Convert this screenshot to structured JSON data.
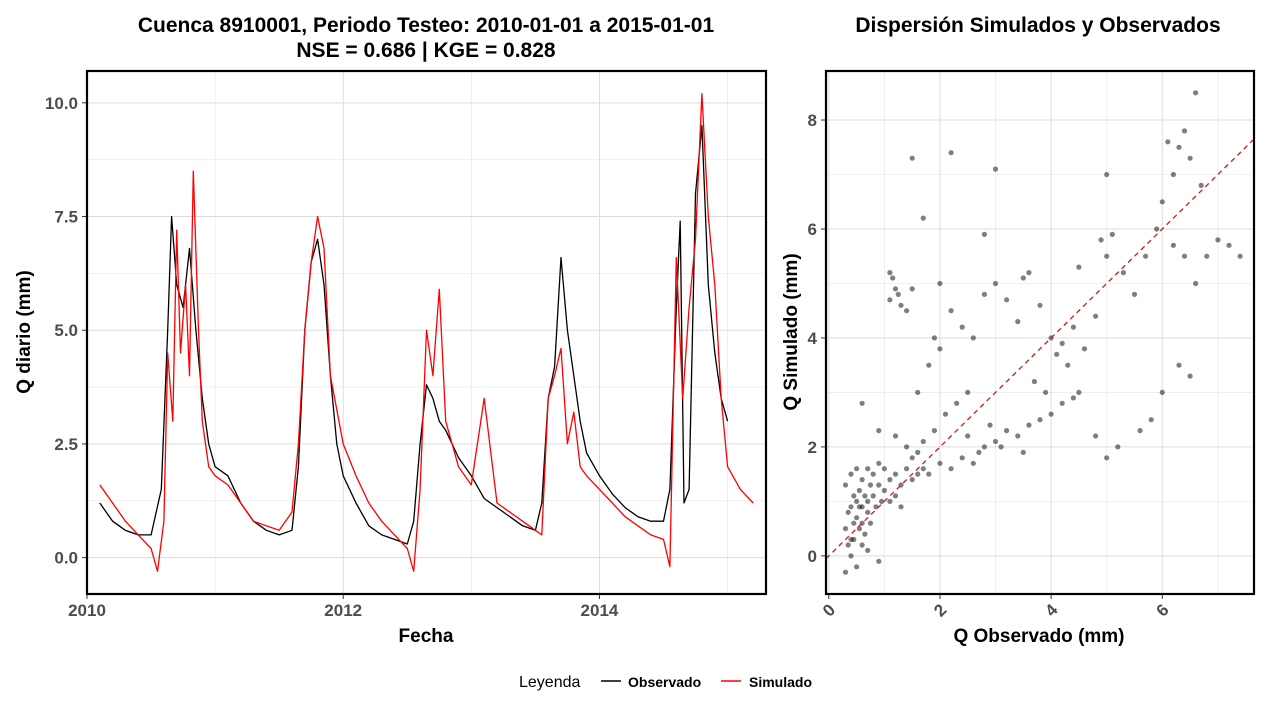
{
  "colors": {
    "observed": "#000000",
    "simulated": "#ff0000",
    "refline": "#cc1a1a",
    "grid": "#ebebeb"
  },
  "legend": {
    "title": "Leyenda",
    "items": [
      "Observado",
      "Simulado"
    ],
    "placement": "bottom"
  },
  "chart_data": [
    {
      "type": "line",
      "title": "Cuenca 8910001, Periodo Testeo: 2010-01-01 a 2015-01-01",
      "subtitle": "NSE = 0.686 | KGE = 0.828",
      "xlabel": "Fecha",
      "ylabel": "Q diario (mm)",
      "xlim": [
        2010.0,
        2015.3
      ],
      "ylim": [
        -0.8,
        10.7
      ],
      "xticks": [
        2010,
        2012,
        2014
      ],
      "xtick_labels": [
        "2010",
        "2012",
        "2014"
      ],
      "yticks": [
        0.0,
        2.5,
        5.0,
        7.5,
        10.0
      ],
      "ytick_labels": [
        "0.0",
        "2.5",
        "5.0",
        "7.5",
        "10.0"
      ],
      "grid": true,
      "series": [
        {
          "name": "Observado",
          "color": "#000000",
          "x": [
            2010.1,
            2010.15,
            2010.2,
            2010.3,
            2010.4,
            2010.5,
            2010.58,
            2010.63,
            2010.66,
            2010.7,
            2010.75,
            2010.8,
            2010.85,
            2010.9,
            2010.95,
            2011.0,
            2011.1,
            2011.2,
            2011.3,
            2011.4,
            2011.5,
            2011.6,
            2011.65,
            2011.7,
            2011.75,
            2011.8,
            2011.85,
            2011.9,
            2011.95,
            2012.0,
            2012.1,
            2012.2,
            2012.3,
            2012.4,
            2012.5,
            2012.55,
            2012.6,
            2012.65,
            2012.7,
            2012.75,
            2012.8,
            2012.9,
            2013.0,
            2013.1,
            2013.2,
            2013.3,
            2013.4,
            2013.5,
            2013.55,
            2013.6,
            2013.65,
            2013.7,
            2013.75,
            2013.8,
            2013.85,
            2013.9,
            2014.0,
            2014.1,
            2014.2,
            2014.3,
            2014.4,
            2014.5,
            2014.55,
            2014.6,
            2014.63,
            2014.66,
            2014.7,
            2014.75,
            2014.8,
            2014.85,
            2014.9,
            2014.95,
            2015.0
          ],
          "y": [
            1.2,
            1.0,
            0.8,
            0.6,
            0.5,
            0.5,
            1.5,
            5.0,
            7.5,
            6.0,
            5.5,
            6.8,
            5.0,
            3.5,
            2.5,
            2.0,
            1.8,
            1.2,
            0.8,
            0.6,
            0.5,
            0.6,
            2.0,
            5.0,
            6.5,
            7.0,
            6.0,
            4.0,
            2.5,
            1.8,
            1.2,
            0.7,
            0.5,
            0.4,
            0.3,
            0.8,
            2.5,
            3.8,
            3.5,
            3.0,
            2.8,
            2.2,
            1.8,
            1.3,
            1.1,
            0.9,
            0.7,
            0.6,
            1.2,
            3.5,
            4.2,
            6.6,
            5.0,
            4.0,
            3.0,
            2.3,
            1.8,
            1.4,
            1.1,
            0.9,
            0.8,
            0.8,
            1.5,
            5.5,
            7.4,
            1.2,
            1.5,
            8.0,
            9.5,
            6.0,
            4.5,
            3.5,
            3.0
          ]
        },
        {
          "name": "Simulado",
          "color": "#ff0000",
          "x": [
            2010.1,
            2010.2,
            2010.3,
            2010.4,
            2010.5,
            2010.55,
            2010.6,
            2010.63,
            2010.67,
            2010.7,
            2010.73,
            2010.77,
            2010.8,
            2010.83,
            2010.87,
            2010.9,
            2010.95,
            2011.0,
            2011.1,
            2011.2,
            2011.3,
            2011.4,
            2011.5,
            2011.6,
            2011.65,
            2011.7,
            2011.75,
            2011.8,
            2011.85,
            2011.9,
            2012.0,
            2012.1,
            2012.2,
            2012.3,
            2012.4,
            2012.5,
            2012.55,
            2012.6,
            2012.65,
            2012.7,
            2012.75,
            2012.8,
            2012.85,
            2012.9,
            2013.0,
            2013.1,
            2013.2,
            2013.3,
            2013.4,
            2013.5,
            2013.55,
            2013.6,
            2013.65,
            2013.7,
            2013.75,
            2013.8,
            2013.85,
            2013.9,
            2014.0,
            2014.1,
            2014.2,
            2014.3,
            2014.4,
            2014.5,
            2014.55,
            2014.6,
            2014.65,
            2014.7,
            2014.75,
            2014.8,
            2014.85,
            2014.9,
            2014.95,
            2015.0,
            2015.1,
            2015.2
          ],
          "y": [
            1.6,
            1.2,
            0.8,
            0.5,
            0.2,
            -0.3,
            0.8,
            4.5,
            3.0,
            7.2,
            4.5,
            6.0,
            4.0,
            8.5,
            5.0,
            3.0,
            2.0,
            1.8,
            1.6,
            1.2,
            0.8,
            0.7,
            0.6,
            1.0,
            2.5,
            5.0,
            6.5,
            7.5,
            6.8,
            4.0,
            2.5,
            1.8,
            1.2,
            0.8,
            0.5,
            0.2,
            -0.3,
            1.5,
            5.0,
            4.0,
            5.9,
            3.0,
            2.5,
            2.0,
            1.6,
            3.5,
            1.2,
            1.0,
            0.8,
            0.6,
            0.5,
            3.5,
            4.0,
            4.6,
            2.5,
            3.2,
            2.0,
            1.8,
            1.5,
            1.2,
            0.9,
            0.7,
            0.5,
            0.4,
            -0.2,
            6.6,
            3.5,
            5.5,
            7.0,
            10.2,
            7.5,
            6.0,
            3.5,
            2.0,
            1.5,
            1.2
          ]
        }
      ]
    },
    {
      "type": "scatter",
      "title": "Dispersión Simulados y Observados",
      "xlabel": "Q Observado (mm)",
      "ylabel": "Q Simulado (mm)",
      "xlim": [
        -0.05,
        7.65
      ],
      "ylim": [
        -0.7,
        8.9
      ],
      "xticks": [
        0,
        2,
        4,
        6
      ],
      "xtick_labels": [
        "0",
        "2",
        "4",
        "6"
      ],
      "yticks": [
        0,
        2,
        4,
        6,
        8
      ],
      "ytick_labels": [
        "0",
        "2",
        "4",
        "6",
        "8"
      ],
      "grid": true,
      "reference_line": {
        "type": "y = x",
        "style": "dashed",
        "color": "#cc1a1a"
      },
      "point_color": "#000000",
      "point_alpha": 0.5,
      "points": [
        [
          0.3,
          0.5
        ],
        [
          0.35,
          0.8
        ],
        [
          0.4,
          0.3
        ],
        [
          0.45,
          1.1
        ],
        [
          0.5,
          0.7
        ],
        [
          0.55,
          1.2
        ],
        [
          0.6,
          0.9
        ],
        [
          0.65,
          0.4
        ],
        [
          0.7,
          1.0
        ],
        [
          0.3,
          1.3
        ],
        [
          0.4,
          0.0
        ],
        [
          0.5,
          -0.2
        ],
        [
          0.35,
          0.2
        ],
        [
          0.6,
          0.6
        ],
        [
          0.7,
          0.8
        ],
        [
          0.8,
          1.1
        ],
        [
          0.9,
          1.3
        ],
        [
          1.0,
          1.2
        ],
        [
          1.1,
          1.4
        ],
        [
          0.45,
          0.6
        ],
        [
          0.55,
          0.9
        ],
        [
          0.75,
          1.3
        ],
        [
          0.85,
          0.9
        ],
        [
          0.95,
          1.0
        ],
        [
          1.2,
          1.5
        ],
        [
          1.3,
          1.3
        ],
        [
          1.4,
          1.6
        ],
        [
          1.5,
          1.4
        ],
        [
          1.6,
          1.5
        ],
        [
          1.2,
          1.1
        ],
        [
          0.3,
          -0.3
        ],
        [
          0.4,
          1.5
        ],
        [
          0.5,
          1.6
        ],
        [
          0.6,
          0.2
        ],
        [
          0.7,
          0.1
        ],
        [
          0.9,
          -0.1
        ],
        [
          1.0,
          1.6
        ],
        [
          1.1,
          1.0
        ],
        [
          1.3,
          0.9
        ],
        [
          1.5,
          1.8
        ],
        [
          1.7,
          1.6
        ],
        [
          1.8,
          1.5
        ],
        [
          2.0,
          1.7
        ],
        [
          2.2,
          1.6
        ],
        [
          2.4,
          1.8
        ],
        [
          2.6,
          1.7
        ],
        [
          2.8,
          2.0
        ],
        [
          3.0,
          2.1
        ],
        [
          3.2,
          2.3
        ],
        [
          3.4,
          2.2
        ],
        [
          3.6,
          2.4
        ],
        [
          3.8,
          2.5
        ],
        [
          4.0,
          2.6
        ],
        [
          4.2,
          2.8
        ],
        [
          4.4,
          2.9
        ],
        [
          2.5,
          2.2
        ],
        [
          2.7,
          1.9
        ],
        [
          2.9,
          2.4
        ],
        [
          3.1,
          2.0
        ],
        [
          3.5,
          1.9
        ],
        [
          1.1,
          4.7
        ],
        [
          1.2,
          4.9
        ],
        [
          1.15,
          5.1
        ],
        [
          1.3,
          4.6
        ],
        [
          1.25,
          4.8
        ],
        [
          1.1,
          5.2
        ],
        [
          1.4,
          4.5
        ],
        [
          1.5,
          4.9
        ],
        [
          1.6,
          3.0
        ],
        [
          1.8,
          3.5
        ],
        [
          2.0,
          3.8
        ],
        [
          2.2,
          4.5
        ],
        [
          2.4,
          4.2
        ],
        [
          2.6,
          4.0
        ],
        [
          2.8,
          4.8
        ],
        [
          3.0,
          5.0
        ],
        [
          3.2,
          4.7
        ],
        [
          3.4,
          4.3
        ],
        [
          3.6,
          5.2
        ],
        [
          3.8,
          4.6
        ],
        [
          4.0,
          4.0
        ],
        [
          4.2,
          3.9
        ],
        [
          4.4,
          4.2
        ],
        [
          4.6,
          3.8
        ],
        [
          4.8,
          4.4
        ],
        [
          5.0,
          5.5
        ],
        [
          5.1,
          5.9
        ],
        [
          4.9,
          5.8
        ],
        [
          5.3,
          5.2
        ],
        [
          5.5,
          4.8
        ],
        [
          5.7,
          5.5
        ],
        [
          5.9,
          6.0
        ],
        [
          6.0,
          6.5
        ],
        [
          6.2,
          7.0
        ],
        [
          6.3,
          7.5
        ],
        [
          6.4,
          7.8
        ],
        [
          6.5,
          7.3
        ],
        [
          6.6,
          8.5
        ],
        [
          6.1,
          7.6
        ],
        [
          6.7,
          6.8
        ],
        [
          6.2,
          5.7
        ],
        [
          6.4,
          5.5
        ],
        [
          6.6,
          5.0
        ],
        [
          6.8,
          5.5
        ],
        [
          7.0,
          5.8
        ],
        [
          7.2,
          5.7
        ],
        [
          7.4,
          5.5
        ],
        [
          6.5,
          3.3
        ],
        [
          6.3,
          3.5
        ],
        [
          6.0,
          3.0
        ],
        [
          5.8,
          2.5
        ],
        [
          5.6,
          2.3
        ],
        [
          5.2,
          2.0
        ],
        [
          5.0,
          1.8
        ],
        [
          4.8,
          2.2
        ],
        [
          4.5,
          3.0
        ],
        [
          4.3,
          3.5
        ],
        [
          4.1,
          3.7
        ],
        [
          3.9,
          3.0
        ],
        [
          3.7,
          3.2
        ],
        [
          1.5,
          7.3
        ],
        [
          2.2,
          7.4
        ],
        [
          3.0,
          7.1
        ],
        [
          1.7,
          6.2
        ],
        [
          5.0,
          7.0
        ],
        [
          4.5,
          5.3
        ],
        [
          3.5,
          5.1
        ],
        [
          2.8,
          5.9
        ],
        [
          2.0,
          5.0
        ],
        [
          1.9,
          4.0
        ],
        [
          2.3,
          2.8
        ],
        [
          2.5,
          3.0
        ],
        [
          2.1,
          2.6
        ],
        [
          1.9,
          2.3
        ],
        [
          1.7,
          2.1
        ],
        [
          1.6,
          1.9
        ],
        [
          1.4,
          2.0
        ],
        [
          1.2,
          2.2
        ],
        [
          0.9,
          2.3
        ],
        [
          0.6,
          2.8
        ],
        [
          0.8,
          1.5
        ],
        [
          0.9,
          1.7
        ],
        [
          0.7,
          1.6
        ],
        [
          0.6,
          1.4
        ],
        [
          0.5,
          1.0
        ],
        [
          0.4,
          0.9
        ],
        [
          0.45,
          0.3
        ],
        [
          0.55,
          0.5
        ],
        [
          0.65,
          1.1
        ],
        [
          0.75,
          0.6
        ]
      ]
    }
  ]
}
